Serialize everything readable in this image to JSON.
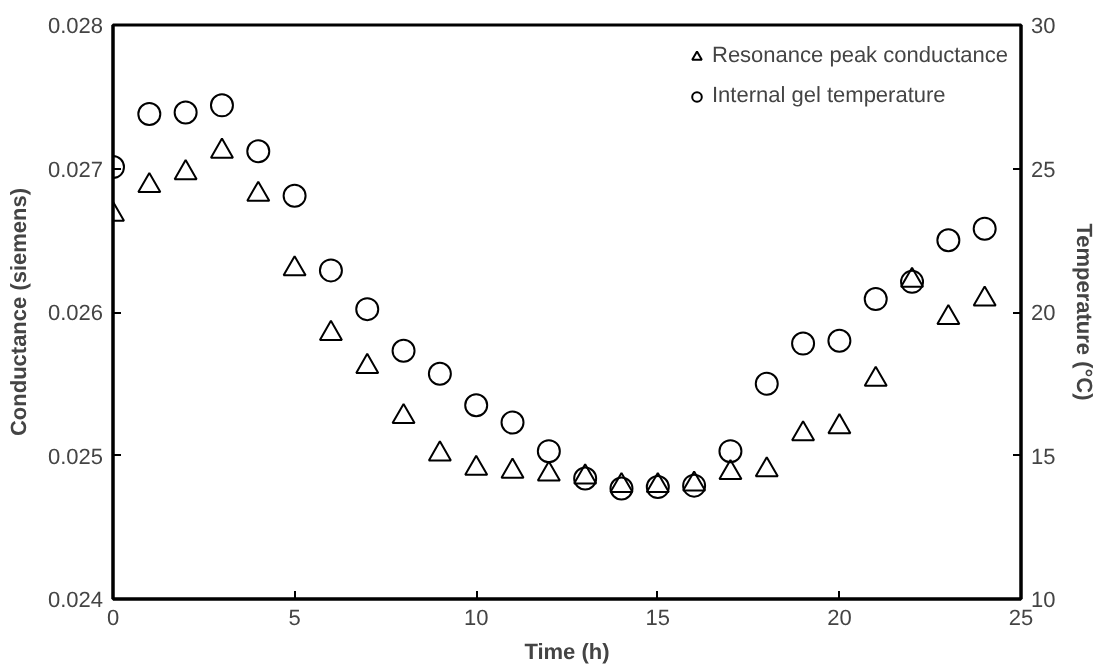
{
  "chart_data": {
    "type": "scatter",
    "xlabel": "Time (h)",
    "ylabel": "Conductance (siemens)",
    "y2label": "Temperature (°C)",
    "x": [
      0,
      1,
      2,
      3,
      4,
      5,
      6,
      7,
      8,
      9,
      10,
      11,
      12,
      13,
      14,
      15,
      16,
      17,
      18,
      19,
      20,
      21,
      22,
      23,
      24
    ],
    "series": [
      {
        "name": "Resonance peak conductance",
        "color": "#000000",
        "marker": "triangle",
        "values": [
          0.02668,
          0.02688,
          0.02697,
          0.02712,
          0.02682,
          0.0263,
          0.02585,
          0.02562,
          0.02527,
          0.02501,
          0.02491,
          0.02489,
          0.02487,
          0.02485,
          0.02479,
          0.02479,
          0.0248,
          0.02488,
          0.0249,
          0.02515,
          0.0252,
          0.02553,
          0.02622,
          0.02596,
          0.02609
        ]
      },
      {
        "name": "Internal gel temperature",
        "color": "#000000",
        "marker": "circle",
        "axis": "y2",
        "values": [
          25.05,
          26.9,
          26.95,
          27.2,
          25.6,
          24.05,
          21.45,
          20.1,
          18.65,
          17.85,
          16.75,
          16.15,
          15.15,
          14.2,
          13.85,
          13.9,
          13.95,
          15.15,
          17.5,
          18.9,
          19.0,
          20.45,
          21.05,
          22.5,
          22.9
        ]
      }
    ],
    "xlim": [
      0,
      25
    ],
    "xticks": [
      0,
      5,
      10,
      15,
      20,
      25
    ],
    "ylim": [
      0.024,
      0.028
    ],
    "yticks": [
      0.024,
      0.025,
      0.026,
      0.027,
      0.028
    ],
    "y2lim": [
      10,
      30
    ],
    "y2ticks": [
      10,
      15,
      20,
      25,
      30
    ],
    "grid": false,
    "legend": "top right"
  }
}
